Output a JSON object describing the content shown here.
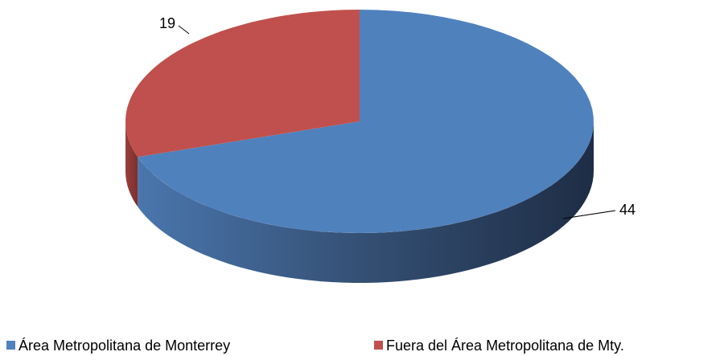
{
  "chart_data": {
    "type": "pie",
    "categories": [
      "Área Metropolitana de Monterrey",
      "Fuera del Área Metropolitana de Mty."
    ],
    "values": [
      44,
      19
    ],
    "colors": [
      "#4f81bd",
      "#c0504d"
    ],
    "legend": "bottom"
  }
}
